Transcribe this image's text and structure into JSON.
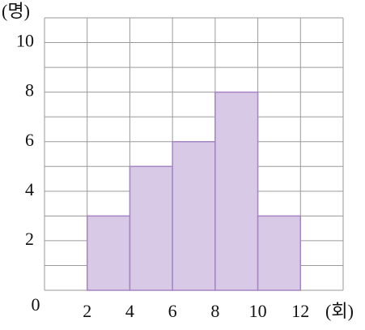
{
  "chart_data": {
    "type": "histogram",
    "y_label": "(명)",
    "x_label": "(회)",
    "bins": [
      2,
      4,
      6,
      8,
      10,
      12
    ],
    "values": [
      3,
      5,
      6,
      8,
      3
    ],
    "color": "#d8c9e6",
    "edge_color": "#a585c4",
    "xlim": [
      0,
      14
    ],
    "xticks": [
      2,
      4,
      6,
      8,
      10,
      12
    ],
    "ylim": [
      0,
      11
    ],
    "yticks": [
      0,
      2,
      4,
      6,
      8,
      10
    ],
    "yminor": [
      1,
      3,
      5,
      7,
      9,
      11
    ],
    "grid": true
  }
}
